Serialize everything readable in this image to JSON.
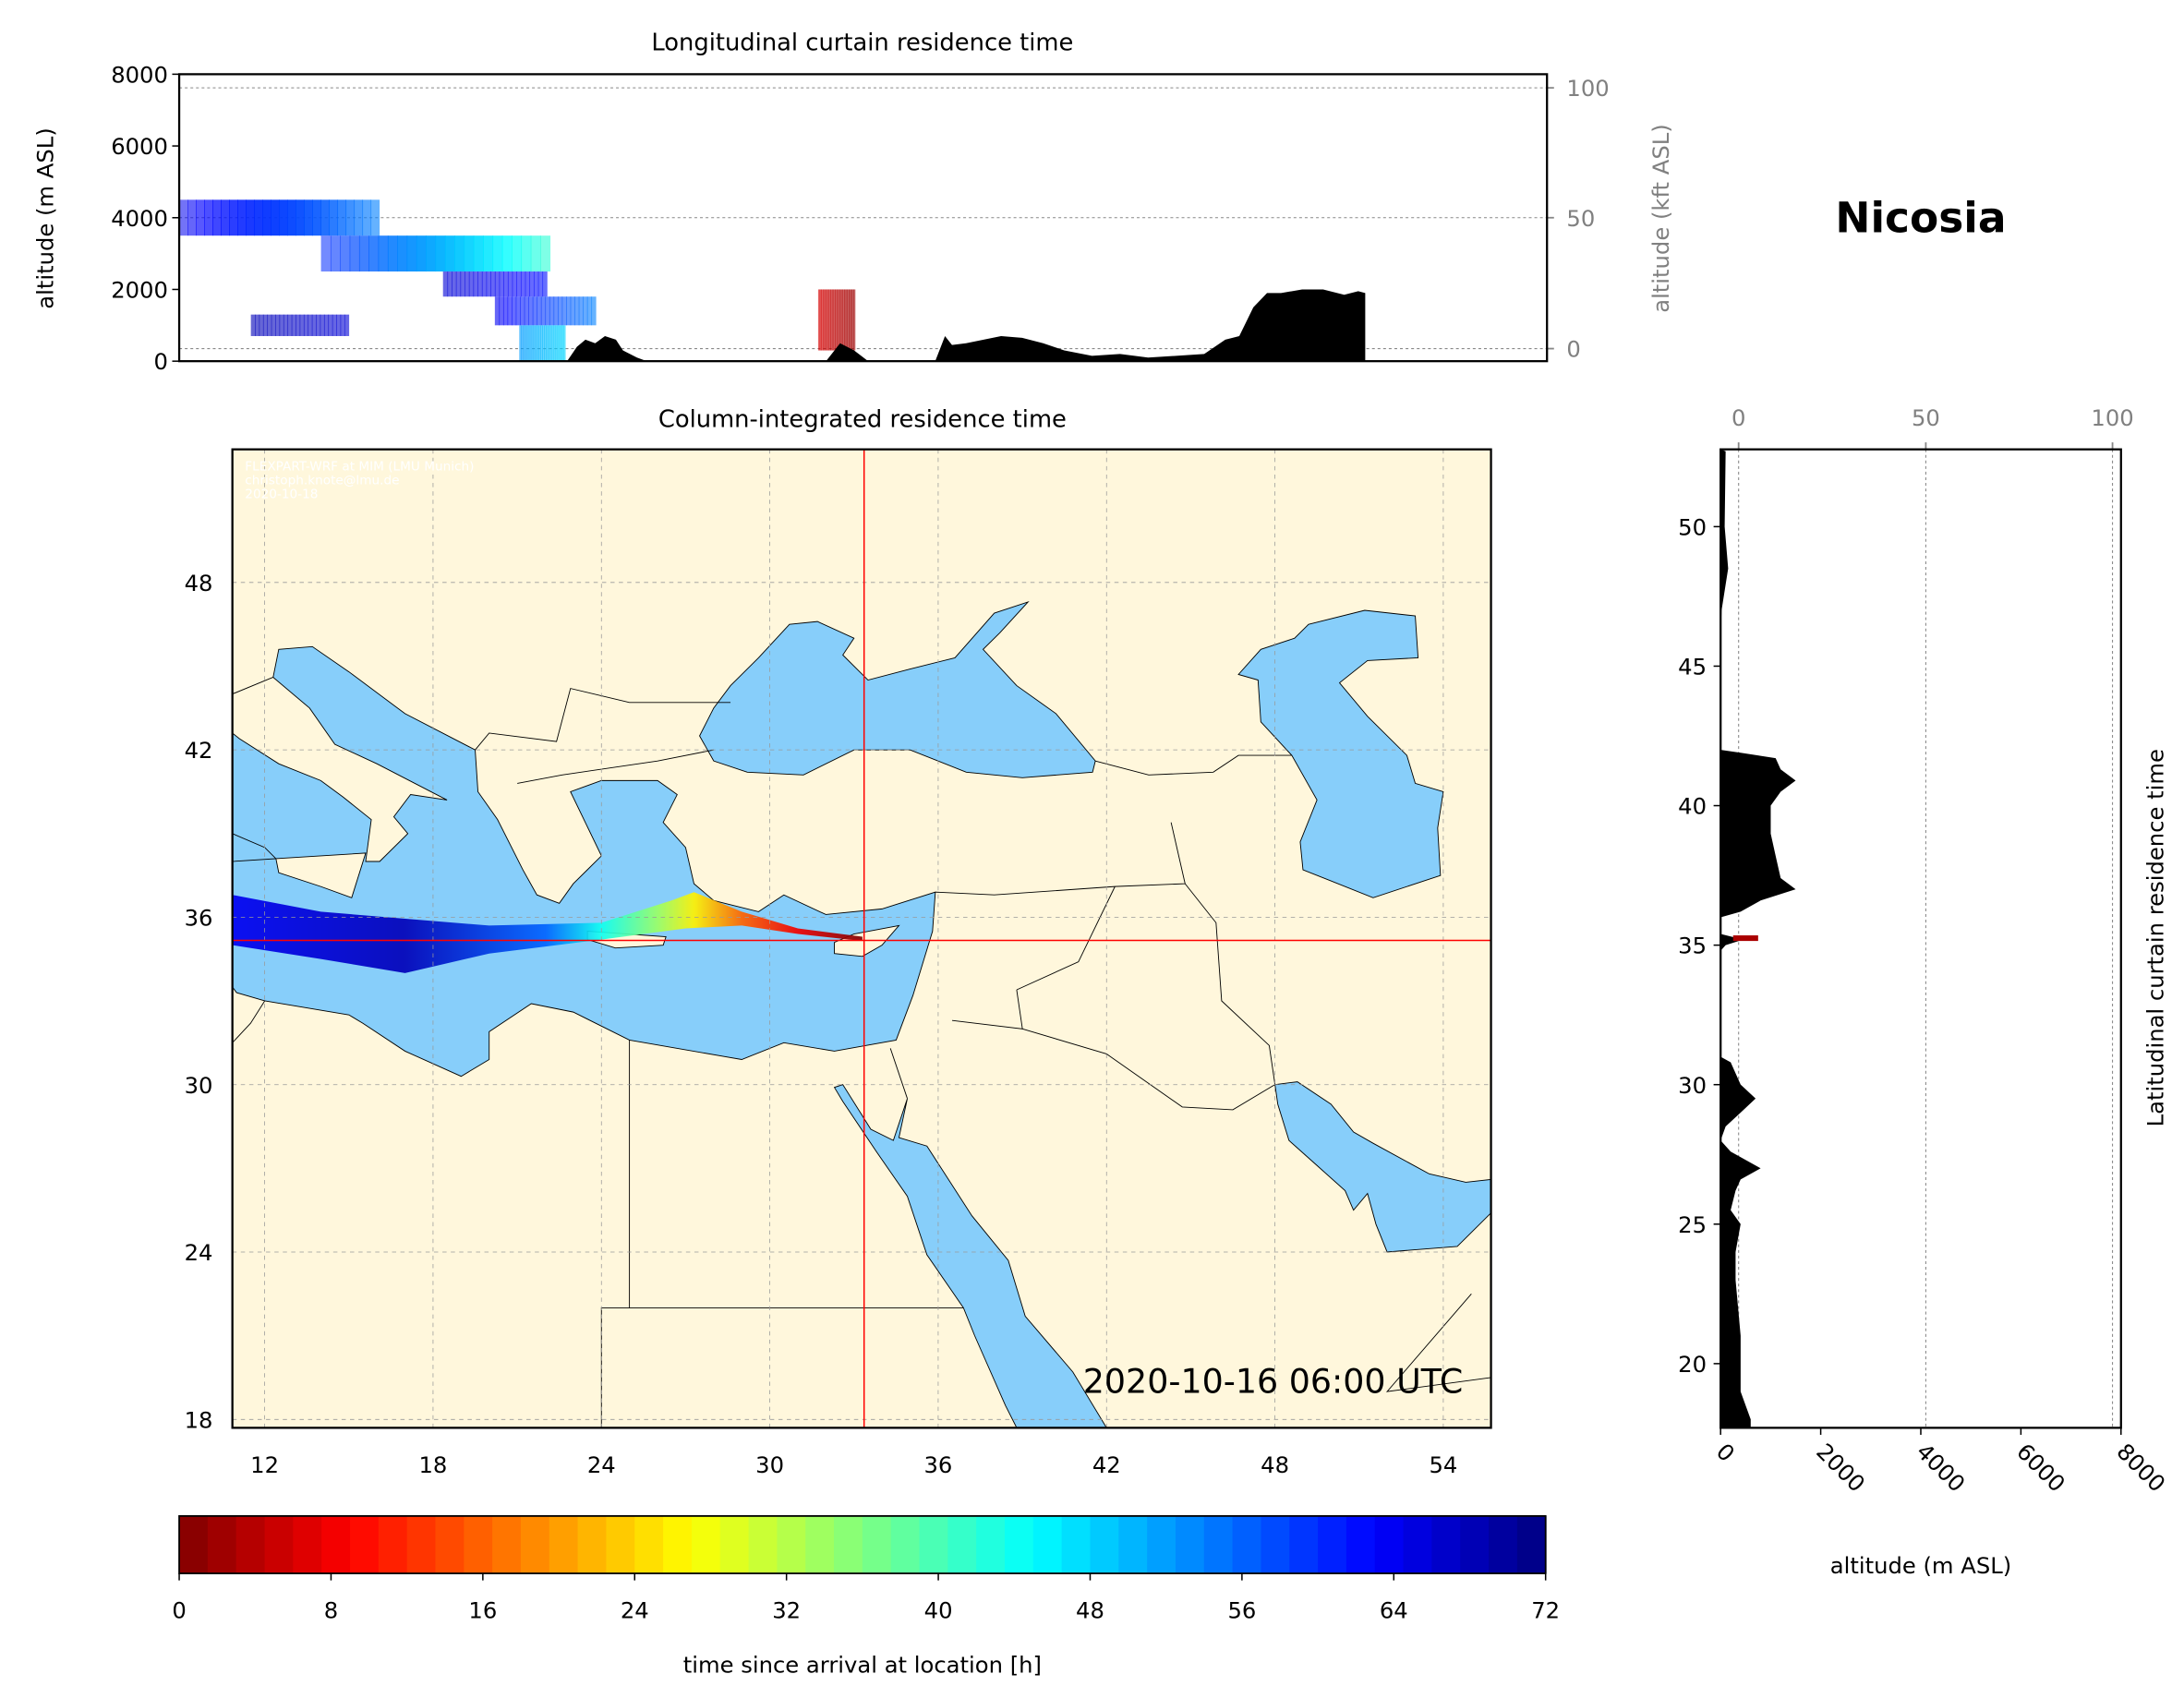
{
  "location_title": "Nicosia",
  "timestamp": "2020-10-16 06:00 UTC",
  "credit": [
    "FLEXPART-WRF at MIM (LMU Munich)",
    "christoph.knote@lmu.de",
    "2020-10-18"
  ],
  "colors": {
    "land": "#fff7dc",
    "sea": "#87cefa",
    "terrain": "#000000",
    "crosshair": "#ff0000",
    "border": "#000000"
  },
  "chart_data": [
    {
      "id": "longitudinal",
      "type": "area",
      "title": "Longitudinal curtain residence time",
      "ylabel": "altitude (m ASL)",
      "ylabel_right": "altitude (kft ASL)",
      "ylim": [
        0,
        8000
      ],
      "yticks": [
        0,
        2000,
        4000,
        6000,
        8000
      ],
      "yticks_right": [
        {
          "label": "0",
          "m": 350
        },
        {
          "label": "50",
          "m": 4000
        },
        {
          "label": "100",
          "m": 7620
        }
      ],
      "grid": true,
      "terrain": [
        [
          23.57,
          0
        ],
        [
          23.89,
          400
        ],
        [
          24.17,
          600
        ],
        [
          24.49,
          500
        ],
        [
          24.81,
          700
        ],
        [
          25.17,
          600
        ],
        [
          25.4,
          300
        ],
        [
          25.86,
          100
        ],
        [
          26.18,
          0
        ],
        [
          32.06,
          0
        ],
        [
          32.52,
          500
        ],
        [
          32.98,
          300
        ],
        [
          33.44,
          0
        ],
        [
          35.64,
          0
        ],
        [
          35.96,
          700
        ],
        [
          36.19,
          450
        ],
        [
          36.65,
          500
        ],
        [
          37.8,
          700
        ],
        [
          38.49,
          650
        ],
        [
          39.18,
          500
        ],
        [
          39.87,
          300
        ],
        [
          40.78,
          150
        ],
        [
          41.7,
          200
        ],
        [
          42.62,
          100
        ],
        [
          43.54,
          150
        ],
        [
          44.46,
          200
        ],
        [
          45.15,
          600
        ],
        [
          45.61,
          700
        ],
        [
          46.07,
          1500
        ],
        [
          46.52,
          1900
        ],
        [
          46.98,
          1900
        ],
        [
          47.67,
          2000
        ],
        [
          48.36,
          2000
        ],
        [
          49.05,
          1850
        ],
        [
          49.51,
          1950
        ],
        [
          49.74,
          1900
        ],
        [
          49.74,
          0
        ]
      ],
      "residence_blocks": [
        {
          "lon": [
            10.85,
            17.4
          ],
          "alt": [
            3500,
            4500
          ],
          "hours": [
            64,
            54
          ]
        },
        {
          "lon": [
            15.5,
            23.0
          ],
          "alt": [
            2500,
            3500
          ],
          "hours": [
            60,
            42
          ]
        },
        {
          "lon": [
            19.5,
            22.9
          ],
          "alt": [
            1800,
            2500
          ],
          "hours": [
            66,
            62
          ]
        },
        {
          "lon": [
            21.2,
            24.5
          ],
          "alt": [
            1000,
            1800
          ],
          "hours": [
            64,
            54
          ]
        },
        {
          "lon": [
            22.0,
            23.5
          ],
          "alt": [
            0,
            1000
          ],
          "hours": [
            52,
            48
          ]
        },
        {
          "lon": [
            13.2,
            16.4
          ],
          "alt": [
            700,
            1300
          ],
          "hours": [
            68,
            66
          ]
        },
        {
          "lon": [
            31.8,
            33.0
          ],
          "alt": [
            300,
            2000
          ],
          "hours": [
            6,
            2
          ]
        }
      ]
    },
    {
      "id": "column",
      "type": "heatmap",
      "title": "Column-integrated residence time",
      "xlim": [
        10.85,
        55.7
      ],
      "ylim": [
        17.7,
        52.8
      ],
      "xticks": [
        12,
        18,
        24,
        30,
        36,
        42,
        48,
        54
      ],
      "yticks": [
        18,
        24,
        30,
        36,
        42,
        48
      ],
      "grid": true,
      "location": {
        "lon": 33.36,
        "lat": 35.17
      },
      "plume_upper": [
        [
          10.85,
          36.8
        ],
        [
          14,
          36.2
        ],
        [
          20,
          35.7
        ],
        [
          24,
          35.8
        ],
        [
          26.5,
          36.6
        ],
        [
          27.3,
          36.9
        ],
        [
          29,
          36.2
        ],
        [
          31,
          35.6
        ],
        [
          33.3,
          35.3
        ]
      ],
      "plume_lower": [
        [
          33.3,
          35.15
        ],
        [
          31,
          35.4
        ],
        [
          29,
          35.7
        ],
        [
          27,
          35.6
        ],
        [
          24,
          35.2
        ],
        [
          20,
          34.7
        ],
        [
          17,
          34.0
        ],
        [
          14,
          34.5
        ],
        [
          10.85,
          35.0
        ]
      ],
      "plume_hours": [
        [
          10.85,
          64
        ],
        [
          17,
          68
        ],
        [
          22,
          56
        ],
        [
          24,
          44
        ],
        [
          26,
          34
        ],
        [
          27.3,
          26
        ],
        [
          29,
          16
        ],
        [
          31,
          8
        ],
        [
          33.3,
          0
        ]
      ]
    },
    {
      "id": "latitudinal",
      "type": "area",
      "title": "Latitudinal curtain residence time",
      "xlabel": "altitude (m ASL)",
      "xlim": [
        0,
        8000
      ],
      "xticks": [
        0,
        2000,
        4000,
        6000,
        8000
      ],
      "xticks_top": [
        {
          "label": "0",
          "m": 360
        },
        {
          "label": "50",
          "m": 4100
        },
        {
          "label": "100",
          "m": 7830
        }
      ],
      "yticks": [
        20,
        25,
        30,
        35,
        40,
        45,
        50
      ],
      "grid": true,
      "terrain": [
        [
          52.7,
          100
        ],
        [
          50,
          80
        ],
        [
          48.5,
          150
        ],
        [
          47,
          20
        ],
        [
          46,
          0
        ],
        [
          42,
          0
        ],
        [
          41.9,
          400
        ],
        [
          41.7,
          1100
        ],
        [
          41.3,
          1200
        ],
        [
          40.9,
          1500
        ],
        [
          40.5,
          1200
        ],
        [
          40,
          1000
        ],
        [
          39,
          1000
        ],
        [
          38.2,
          1100
        ],
        [
          37.4,
          1200
        ],
        [
          37,
          1500
        ],
        [
          36.6,
          800
        ],
        [
          36.2,
          400
        ],
        [
          36,
          0
        ],
        [
          35.4,
          0
        ],
        [
          35.2,
          450
        ],
        [
          35,
          100
        ],
        [
          34.8,
          0
        ],
        [
          31,
          0
        ],
        [
          30.8,
          200
        ],
        [
          30,
          400
        ],
        [
          29.5,
          700
        ],
        [
          29,
          400
        ],
        [
          28.5,
          100
        ],
        [
          28,
          0
        ],
        [
          27.6,
          200
        ],
        [
          27,
          800
        ],
        [
          26.6,
          400
        ],
        [
          26.2,
          300
        ],
        [
          25.5,
          200
        ],
        [
          25,
          400
        ],
        [
          24,
          300
        ],
        [
          23,
          300
        ],
        [
          21,
          400
        ],
        [
          19,
          400
        ],
        [
          18,
          600
        ],
        [
          17.7,
          600
        ]
      ],
      "residence": {
        "lat": 35.25,
        "alt": [
          250,
          750
        ],
        "hours": 3
      }
    },
    {
      "id": "colorbar",
      "type": "bar",
      "xlabel": "time since arrival at location [h]",
      "range": [
        0,
        72
      ],
      "ticks": [
        0,
        8,
        16,
        24,
        32,
        40,
        48,
        56,
        64,
        72
      ],
      "colormap": "jet_reversed"
    }
  ]
}
